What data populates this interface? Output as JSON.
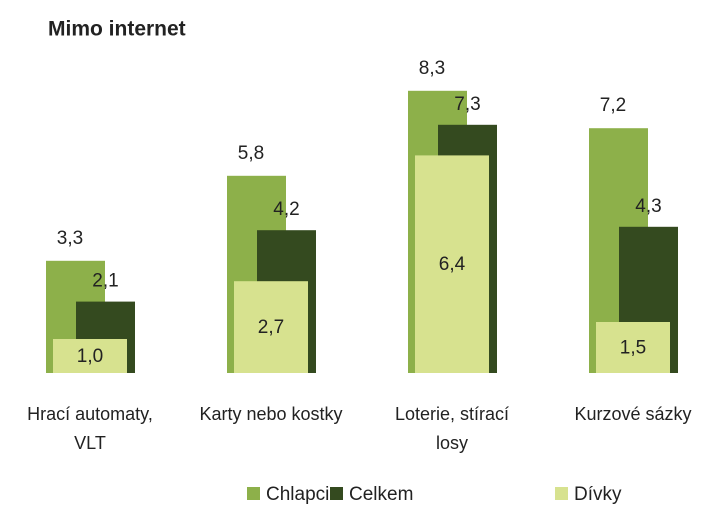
{
  "chart_data": {
    "type": "bar",
    "title": "Mimo internet",
    "categories": [
      "Hrací automaty, VLT",
      "Karty nebo kostky",
      "Loterie, stírací losy",
      "Kurzové sázky"
    ],
    "series": [
      {
        "name": "Chlapci",
        "color": "#8db04a",
        "values": [
          3.3,
          5.8,
          8.3,
          7.2
        ],
        "value_labels": [
          "3,3",
          "5,8",
          "8,3",
          "7,2"
        ]
      },
      {
        "name": "Celkem",
        "color": "#344a1f",
        "values": [
          2.1,
          4.2,
          7.3,
          4.3
        ],
        "value_labels": [
          "2,1",
          "4,2",
          "7,3",
          "4,3"
        ]
      },
      {
        "name": "Dívky",
        "color": "#d7e28f",
        "values": [
          1.0,
          2.7,
          6.4,
          1.5
        ],
        "value_labels": [
          "1,0",
          "2,7",
          "6,4",
          "1,5"
        ]
      }
    ]
  }
}
